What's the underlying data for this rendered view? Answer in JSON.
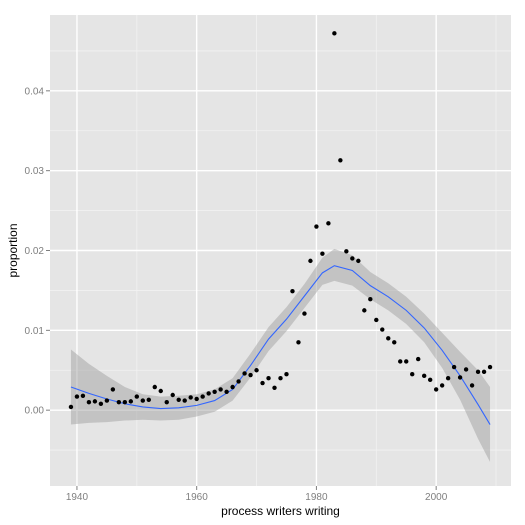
{
  "chart_data": {
    "type": "scatter",
    "title": "",
    "xlabel": "process writers writing",
    "ylabel": "proportion",
    "xlim": [
      1935.5,
      2012.5
    ],
    "ylim": [
      -0.0095,
      0.0495
    ],
    "x_ticks": [
      1940,
      1960,
      1980,
      2000
    ],
    "x_tick_labels": [
      "1940",
      "1960",
      "1980",
      "2000"
    ],
    "y_ticks": [
      0.0,
      0.01,
      0.02,
      0.03,
      0.04
    ],
    "y_tick_labels": [
      "0.00",
      "0.01",
      "0.02",
      "0.03",
      "0.04"
    ],
    "grid": true,
    "colors": {
      "panel_bg": "#E5E5E5",
      "grid": "#FFFFFF",
      "points": "#000000",
      "smooth_line": "#3366FF",
      "confidence_band": "#999999"
    },
    "points": [
      {
        "x": 1939,
        "y": 0.0004
      },
      {
        "x": 1940,
        "y": 0.0017
      },
      {
        "x": 1941,
        "y": 0.0018
      },
      {
        "x": 1942,
        "y": 0.001
      },
      {
        "x": 1943,
        "y": 0.0011
      },
      {
        "x": 1944,
        "y": 0.0008
      },
      {
        "x": 1945,
        "y": 0.0012
      },
      {
        "x": 1946,
        "y": 0.0026
      },
      {
        "x": 1947,
        "y": 0.001
      },
      {
        "x": 1948,
        "y": 0.001
      },
      {
        "x": 1949,
        "y": 0.0011
      },
      {
        "x": 1950,
        "y": 0.0017
      },
      {
        "x": 1951,
        "y": 0.0012
      },
      {
        "x": 1952,
        "y": 0.0013
      },
      {
        "x": 1953,
        "y": 0.0029
      },
      {
        "x": 1954,
        "y": 0.0024
      },
      {
        "x": 1955,
        "y": 0.001
      },
      {
        "x": 1956,
        "y": 0.0019
      },
      {
        "x": 1957,
        "y": 0.0013
      },
      {
        "x": 1958,
        "y": 0.0012
      },
      {
        "x": 1959,
        "y": 0.0016
      },
      {
        "x": 1960,
        "y": 0.0014
      },
      {
        "x": 1961,
        "y": 0.0017
      },
      {
        "x": 1962,
        "y": 0.0021
      },
      {
        "x": 1963,
        "y": 0.0023
      },
      {
        "x": 1964,
        "y": 0.0026
      },
      {
        "x": 1965,
        "y": 0.0023
      },
      {
        "x": 1966,
        "y": 0.0029
      },
      {
        "x": 1967,
        "y": 0.0036
      },
      {
        "x": 1968,
        "y": 0.0046
      },
      {
        "x": 1969,
        "y": 0.0044
      },
      {
        "x": 1970,
        "y": 0.005
      },
      {
        "x": 1971,
        "y": 0.0034
      },
      {
        "x": 1972,
        "y": 0.004
      },
      {
        "x": 1973,
        "y": 0.0028
      },
      {
        "x": 1974,
        "y": 0.004
      },
      {
        "x": 1975,
        "y": 0.0045
      },
      {
        "x": 1976,
        "y": 0.0149
      },
      {
        "x": 1977,
        "y": 0.0085
      },
      {
        "x": 1978,
        "y": 0.0121
      },
      {
        "x": 1979,
        "y": 0.0187
      },
      {
        "x": 1980,
        "y": 0.023
      },
      {
        "x": 1981,
        "y": 0.0196
      },
      {
        "x": 1982,
        "y": 0.0234
      },
      {
        "x": 1983,
        "y": 0.0472
      },
      {
        "x": 1984,
        "y": 0.0313
      },
      {
        "x": 1985,
        "y": 0.0199
      },
      {
        "x": 1986,
        "y": 0.019
      },
      {
        "x": 1987,
        "y": 0.0187
      },
      {
        "x": 1988,
        "y": 0.0125
      },
      {
        "x": 1989,
        "y": 0.0139
      },
      {
        "x": 1990,
        "y": 0.0113
      },
      {
        "x": 1991,
        "y": 0.0101
      },
      {
        "x": 1992,
        "y": 0.009
      },
      {
        "x": 1993,
        "y": 0.0085
      },
      {
        "x": 1994,
        "y": 0.0061
      },
      {
        "x": 1995,
        "y": 0.0061
      },
      {
        "x": 1996,
        "y": 0.0045
      },
      {
        "x": 1997,
        "y": 0.0064
      },
      {
        "x": 1998,
        "y": 0.0043
      },
      {
        "x": 1999,
        "y": 0.0038
      },
      {
        "x": 2000,
        "y": 0.0026
      },
      {
        "x": 2001,
        "y": 0.0031
      },
      {
        "x": 2002,
        "y": 0.004
      },
      {
        "x": 2003,
        "y": 0.0054
      },
      {
        "x": 2004,
        "y": 0.0041
      },
      {
        "x": 2005,
        "y": 0.0051
      },
      {
        "x": 2006,
        "y": 0.0031
      },
      {
        "x": 2007,
        "y": 0.0048
      },
      {
        "x": 2008,
        "y": 0.0048
      },
      {
        "x": 2009,
        "y": 0.0054
      }
    ],
    "smooth": [
      {
        "x": 1939,
        "y": 0.0029,
        "lo": -0.0018,
        "hi": 0.0076
      },
      {
        "x": 1942,
        "y": 0.0021,
        "lo": -0.0016,
        "hi": 0.0058
      },
      {
        "x": 1945,
        "y": 0.0014,
        "lo": -0.0015,
        "hi": 0.0043
      },
      {
        "x": 1948,
        "y": 0.0008,
        "lo": -0.0013,
        "hi": 0.0029
      },
      {
        "x": 1951,
        "y": 0.0004,
        "lo": -0.0012,
        "hi": 0.002
      },
      {
        "x": 1954,
        "y": 0.0002,
        "lo": -0.0013,
        "hi": 0.0017
      },
      {
        "x": 1957,
        "y": 0.0003,
        "lo": -0.0012,
        "hi": 0.0018
      },
      {
        "x": 1960,
        "y": 0.0006,
        "lo": -0.0008,
        "hi": 0.002
      },
      {
        "x": 1963,
        "y": 0.0012,
        "lo": -0.0002,
        "hi": 0.0026
      },
      {
        "x": 1966,
        "y": 0.0026,
        "lo": 0.0012,
        "hi": 0.004
      },
      {
        "x": 1969,
        "y": 0.0056,
        "lo": 0.0041,
        "hi": 0.0071
      },
      {
        "x": 1972,
        "y": 0.0089,
        "lo": 0.0074,
        "hi": 0.0104
      },
      {
        "x": 1975,
        "y": 0.0114,
        "lo": 0.0099,
        "hi": 0.0129
      },
      {
        "x": 1978,
        "y": 0.0143,
        "lo": 0.0128,
        "hi": 0.0158
      },
      {
        "x": 1981,
        "y": 0.0172,
        "lo": 0.0157,
        "hi": 0.0191
      },
      {
        "x": 1983,
        "y": 0.0181,
        "lo": 0.0162,
        "hi": 0.0202
      },
      {
        "x": 1986,
        "y": 0.0175,
        "lo": 0.0156,
        "hi": 0.0194
      },
      {
        "x": 1989,
        "y": 0.0156,
        "lo": 0.0139,
        "hi": 0.0173
      },
      {
        "x": 1992,
        "y": 0.0142,
        "lo": 0.0125,
        "hi": 0.0159
      },
      {
        "x": 1995,
        "y": 0.0125,
        "lo": 0.0108,
        "hi": 0.0142
      },
      {
        "x": 1998,
        "y": 0.0103,
        "lo": 0.0085,
        "hi": 0.0121
      },
      {
        "x": 2001,
        "y": 0.0075,
        "lo": 0.0053,
        "hi": 0.0097
      },
      {
        "x": 2004,
        "y": 0.0043,
        "lo": 0.0013,
        "hi": 0.0073
      },
      {
        "x": 2007,
        "y": 0.0007,
        "lo": -0.0036,
        "hi": 0.005
      },
      {
        "x": 2009,
        "y": -0.0018,
        "lo": -0.0065,
        "hi": 0.0029
      }
    ]
  }
}
